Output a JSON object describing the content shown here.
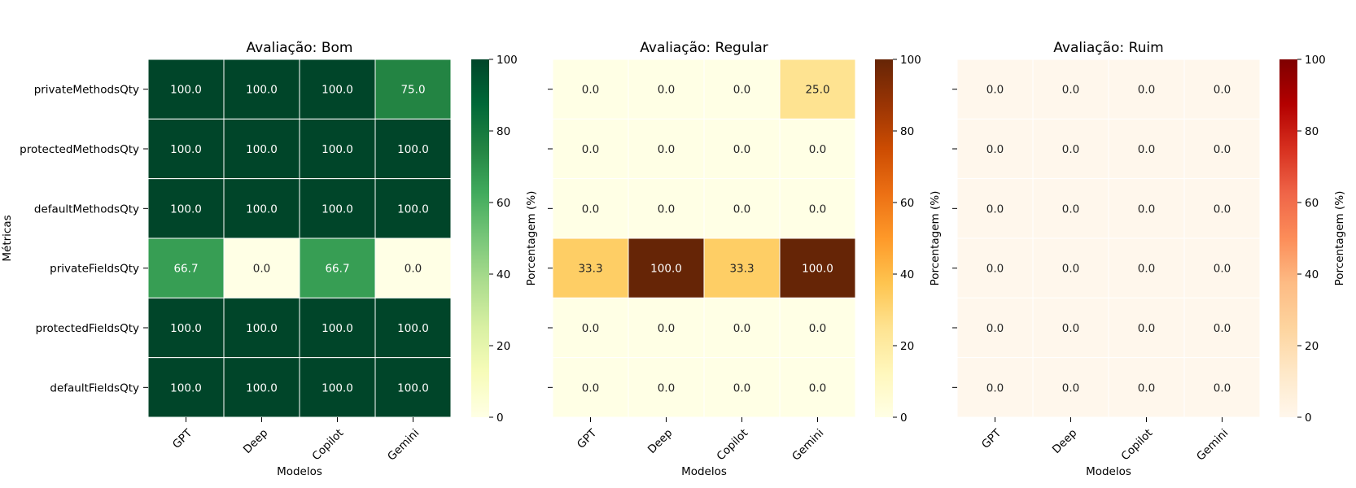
{
  "chart_data": [
    {
      "type": "heatmap",
      "title": "Avaliação: Bom",
      "xlabel": "Modelos",
      "ylabel": "Métricas",
      "x_categories": [
        "GPT",
        "Deep",
        "Copilot",
        "Gemini"
      ],
      "y_categories": [
        "privateMethodsQty",
        "protectedMethodsQty",
        "defaultMethodsQty",
        "privateFieldsQty",
        "protectedFieldsQty",
        "defaultFieldsQty"
      ],
      "values": [
        [
          100.0,
          100.0,
          100.0,
          75.0
        ],
        [
          100.0,
          100.0,
          100.0,
          100.0
        ],
        [
          100.0,
          100.0,
          100.0,
          100.0
        ],
        [
          66.7,
          0.0,
          66.7,
          0.0
        ],
        [
          100.0,
          100.0,
          100.0,
          100.0
        ],
        [
          100.0,
          100.0,
          100.0,
          100.0
        ]
      ],
      "value_labels": [
        [
          "100.0",
          "100.0",
          "100.0",
          "75.0"
        ],
        [
          "100.0",
          "100.0",
          "100.0",
          "100.0"
        ],
        [
          "100.0",
          "100.0",
          "100.0",
          "100.0"
        ],
        [
          "66.7",
          "0.0",
          "66.7",
          "0.0"
        ],
        [
          "100.0",
          "100.0",
          "100.0",
          "100.0"
        ],
        [
          "100.0",
          "100.0",
          "100.0",
          "100.0"
        ]
      ],
      "colormap": "YlGn",
      "colormap_stops": [
        "#ffffe5",
        "#f7fcb9",
        "#d9f0a3",
        "#addd8e",
        "#78c679",
        "#41ab5d",
        "#238443",
        "#006837",
        "#004529"
      ],
      "colorbar_label": "Porcentagem (%)",
      "colorbar_range": [
        0,
        100
      ],
      "colorbar_ticks": [
        0,
        20,
        40,
        60,
        80,
        100
      ],
      "show_y_tick_labels": true
    },
    {
      "type": "heatmap",
      "title": "Avaliação: Regular",
      "xlabel": "Modelos",
      "ylabel": "",
      "x_categories": [
        "GPT",
        "Deep",
        "Copilot",
        "Gemini"
      ],
      "y_categories": [
        "privateMethodsQty",
        "protectedMethodsQty",
        "defaultMethodsQty",
        "privateFieldsQty",
        "protectedFieldsQty",
        "defaultFieldsQty"
      ],
      "values": [
        [
          0.0,
          0.0,
          0.0,
          25.0
        ],
        [
          0.0,
          0.0,
          0.0,
          0.0
        ],
        [
          0.0,
          0.0,
          0.0,
          0.0
        ],
        [
          33.3,
          100.0,
          33.3,
          100.0
        ],
        [
          0.0,
          0.0,
          0.0,
          0.0
        ],
        [
          0.0,
          0.0,
          0.0,
          0.0
        ]
      ],
      "value_labels": [
        [
          "0.0",
          "0.0",
          "0.0",
          "25.0"
        ],
        [
          "0.0",
          "0.0",
          "0.0",
          "0.0"
        ],
        [
          "0.0",
          "0.0",
          "0.0",
          "0.0"
        ],
        [
          "33.3",
          "100.0",
          "33.3",
          "100.0"
        ],
        [
          "0.0",
          "0.0",
          "0.0",
          "0.0"
        ],
        [
          "0.0",
          "0.0",
          "0.0",
          "0.0"
        ]
      ],
      "colormap": "YlOrBr",
      "colormap_stops": [
        "#ffffe5",
        "#fff7bc",
        "#fee391",
        "#fec44f",
        "#fe9929",
        "#ec7014",
        "#cc4c02",
        "#993404",
        "#662506"
      ],
      "colorbar_label": "Porcentagem (%)",
      "colorbar_range": [
        0,
        100
      ],
      "colorbar_ticks": [
        0,
        20,
        40,
        60,
        80,
        100
      ],
      "show_y_tick_labels": false
    },
    {
      "type": "heatmap",
      "title": "Avaliação: Ruim",
      "xlabel": "Modelos",
      "ylabel": "",
      "x_categories": [
        "GPT",
        "Deep",
        "Copilot",
        "Gemini"
      ],
      "y_categories": [
        "privateMethodsQty",
        "protectedMethodsQty",
        "defaultMethodsQty",
        "privateFieldsQty",
        "protectedFieldsQty",
        "defaultFieldsQty"
      ],
      "values": [
        [
          0.0,
          0.0,
          0.0,
          0.0
        ],
        [
          0.0,
          0.0,
          0.0,
          0.0
        ],
        [
          0.0,
          0.0,
          0.0,
          0.0
        ],
        [
          0.0,
          0.0,
          0.0,
          0.0
        ],
        [
          0.0,
          0.0,
          0.0,
          0.0
        ],
        [
          0.0,
          0.0,
          0.0,
          0.0
        ]
      ],
      "value_labels": [
        [
          "0.0",
          "0.0",
          "0.0",
          "0.0"
        ],
        [
          "0.0",
          "0.0",
          "0.0",
          "0.0"
        ],
        [
          "0.0",
          "0.0",
          "0.0",
          "0.0"
        ],
        [
          "0.0",
          "0.0",
          "0.0",
          "0.0"
        ],
        [
          "0.0",
          "0.0",
          "0.0",
          "0.0"
        ],
        [
          "0.0",
          "0.0",
          "0.0",
          "0.0"
        ]
      ],
      "colormap": "OrRd",
      "colormap_stops": [
        "#fff7ec",
        "#fee8c8",
        "#fdd49e",
        "#fdbb84",
        "#fc8d59",
        "#ef6548",
        "#d7301f",
        "#b30000",
        "#7f0000"
      ],
      "colorbar_label": "Porcentagem (%)",
      "colorbar_range": [
        0,
        100
      ],
      "colorbar_ticks": [
        0,
        20,
        40,
        60,
        80,
        100
      ],
      "show_y_tick_labels": false
    }
  ]
}
